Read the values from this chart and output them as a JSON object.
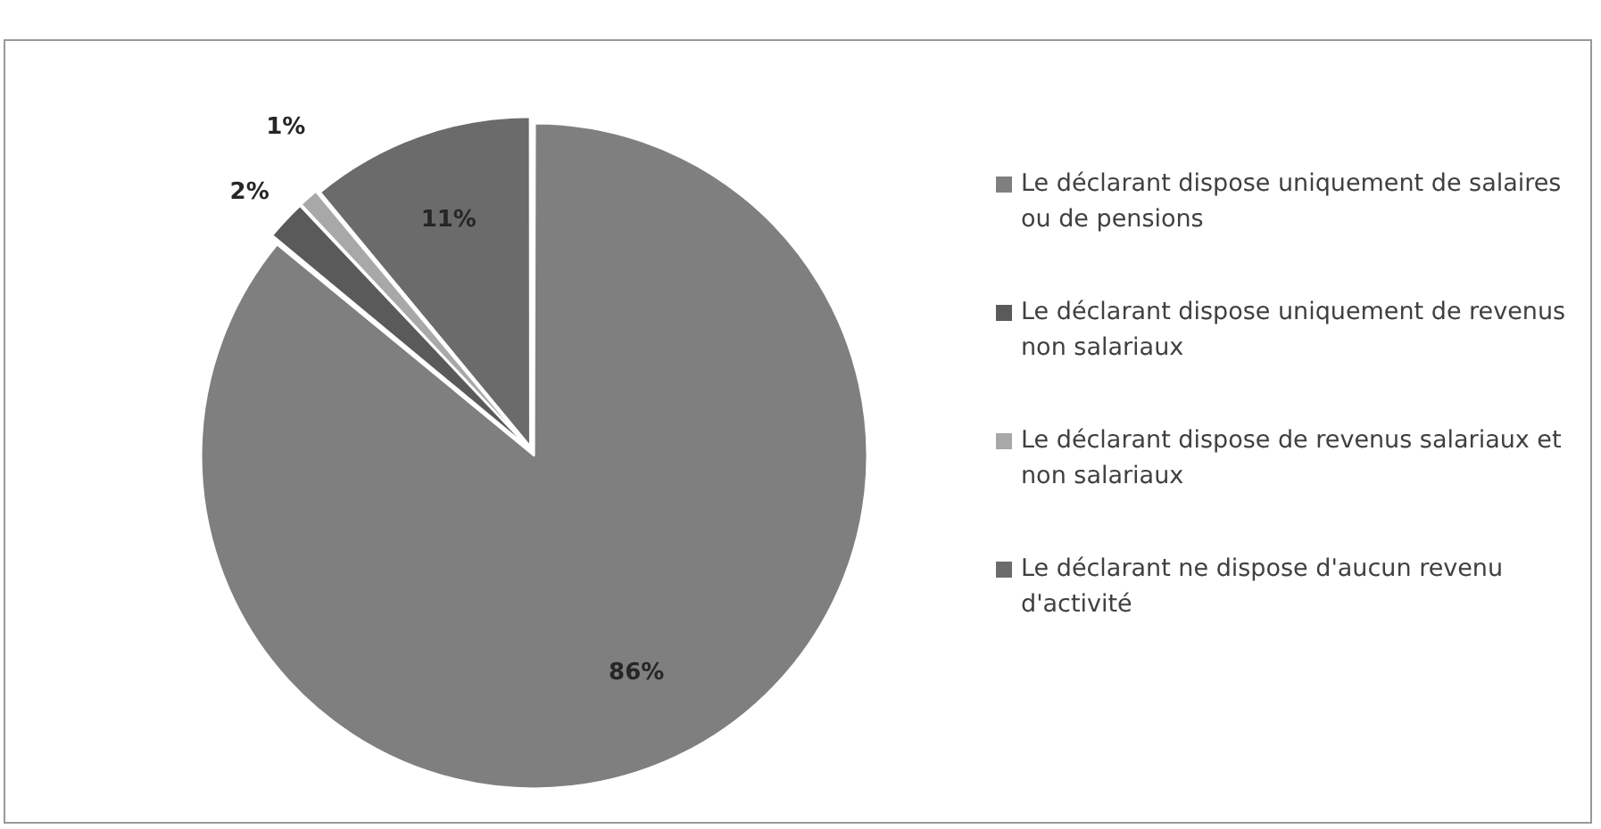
{
  "chart_data": {
    "type": "pie",
    "categories": [
      "Le déclarant dispose uniquement de salaires ou de pensions",
      "Le déclarant dispose uniquement de revenus non salariaux",
      "Le déclarant dispose de revenus salariaux et non salariaux",
      "Le déclarant ne dispose d'aucun revenu d'activité"
    ],
    "values": [
      86,
      2,
      1,
      11
    ],
    "colors": [
      "#7f7f7f",
      "#5a5a5a",
      "#a8a8a8",
      "#6b6b6b"
    ],
    "value_labels": [
      "86%",
      "2%",
      "1%",
      "11%"
    ],
    "legend": "right"
  }
}
